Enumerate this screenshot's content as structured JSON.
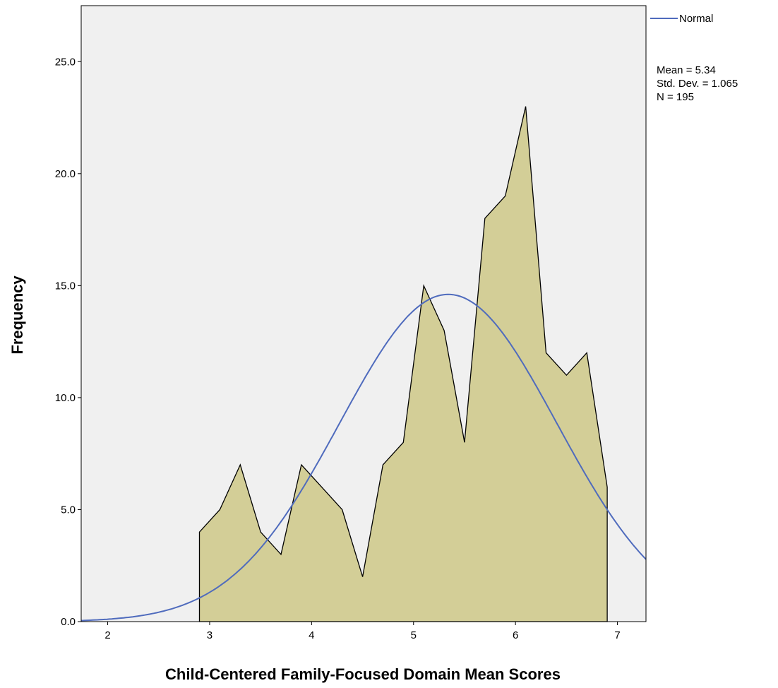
{
  "chart_data": {
    "type": "area",
    "xlabel": "Child-Centered Family-Focused Domain Mean Scores",
    "ylabel": "Frequency",
    "xlim": [
      1.74,
      7.28
    ],
    "ylim": [
      0,
      27.5
    ],
    "x_ticks": [
      2,
      3,
      4,
      5,
      6,
      7
    ],
    "x_tick_labels": [
      "2",
      "3",
      "4",
      "5",
      "6",
      "7"
    ],
    "y_ticks": [
      0,
      5,
      10,
      15,
      20,
      25
    ],
    "y_tick_labels": [
      "0.0",
      "5.0",
      "10.0",
      "15.0",
      "20.0",
      "25.0"
    ],
    "grid": false,
    "legend": {
      "position": "top-right",
      "entries": [
        "Normal"
      ]
    },
    "stats": [
      "Mean = 5.34",
      "Std. Dev. = 1.065",
      "N = 195"
    ],
    "colors": {
      "plot_background": "#f0f0f0",
      "area_fill": "#d3ce97",
      "area_stroke": "#000000",
      "normal_curve": "#4f6bbd"
    },
    "series": [
      {
        "kind": "frequency-polygon",
        "x": [
          2.9,
          2.9,
          3.1,
          3.3,
          3.5,
          3.7,
          3.9,
          4.1,
          4.3,
          4.5,
          4.7,
          4.9,
          5.1,
          5.3,
          5.5,
          5.7,
          5.9,
          6.1,
          6.3,
          6.5,
          6.7,
          6.9,
          6.9
        ],
        "y": [
          0,
          4,
          5,
          7,
          4,
          3,
          7,
          6,
          5,
          2,
          7,
          8,
          15,
          13,
          8,
          18,
          19,
          23,
          12,
          11,
          12,
          6,
          0
        ]
      },
      {
        "name": "Normal",
        "kind": "normal-curve",
        "mean": 5.34,
        "std_dev": 1.065,
        "n": 195,
        "bin_width": 0.2
      }
    ]
  }
}
